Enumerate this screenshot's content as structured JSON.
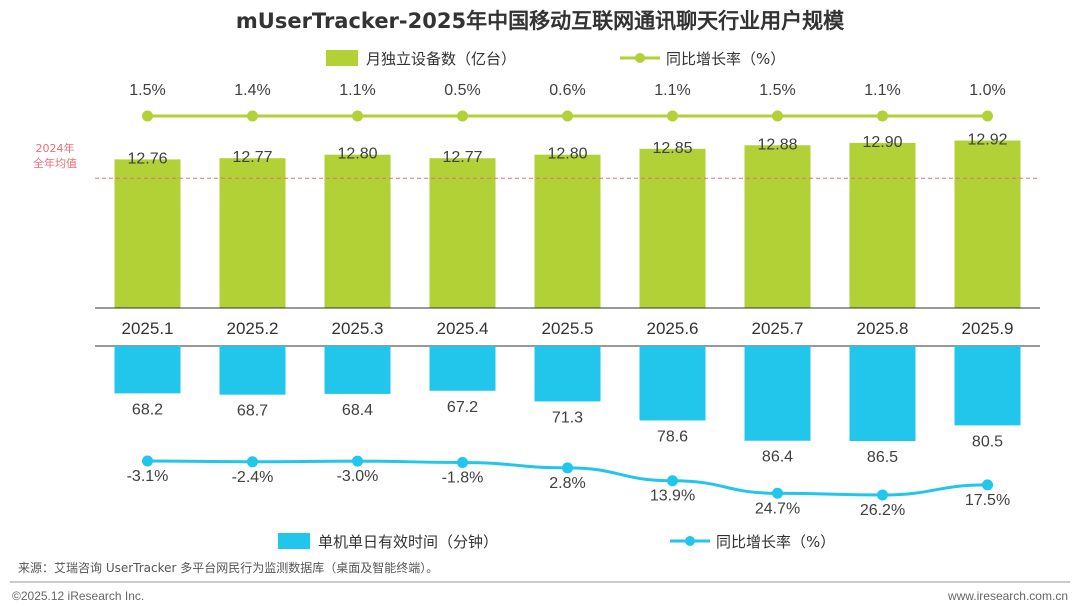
{
  "chart_data": {
    "type": "bar",
    "title": "mUserTracker-2025年中国移动互联网通讯聊天行业用户规模",
    "categories": [
      "2025.1",
      "2025.2",
      "2025.3",
      "2025.4",
      "2025.5",
      "2025.6",
      "2025.7",
      "2025.8",
      "2025.9"
    ],
    "top_panel": {
      "bar_series": {
        "name": "月独立设备数（亿台）",
        "values": [
          12.76,
          12.77,
          12.8,
          12.77,
          12.8,
          12.85,
          12.88,
          12.9,
          12.92
        ],
        "color": "#b1d136"
      },
      "line_series": {
        "name": "同比增长率（%）",
        "values": [
          1.5,
          1.4,
          1.1,
          0.5,
          0.6,
          1.1,
          1.5,
          1.1,
          1.0
        ],
        "labels": [
          "1.5%",
          "1.4%",
          "1.1%",
          "0.5%",
          "0.6%",
          "1.1%",
          "1.5%",
          "1.1%",
          "1.0%"
        ],
        "color": "#b1d136"
      },
      "reference_line": {
        "label_line1": "2024年",
        "label_line2": "全年均值",
        "value": 12.6,
        "color": "#e8707a"
      }
    },
    "bottom_panel": {
      "bar_series": {
        "name": "单机单日有效时间（分钟）",
        "values": [
          68.2,
          68.7,
          68.4,
          67.2,
          71.3,
          78.6,
          86.4,
          86.5,
          80.5
        ],
        "color": "#21c6ea"
      },
      "line_series": {
        "name": "同比增长率（%）",
        "values": [
          -3.1,
          -2.4,
          -3.0,
          -1.8,
          2.8,
          13.9,
          24.7,
          26.2,
          17.5
        ],
        "labels": [
          "-3.1%",
          "-2.4%",
          "-3.0%",
          "-1.8%",
          "2.8%",
          "13.9%",
          "24.7%",
          "26.2%",
          "17.5%"
        ],
        "color": "#21c6ea"
      }
    }
  },
  "source_text": "来源：艾瑞咨询 UserTracker 多平台网民行为监测数据库（桌面及智能终端）。",
  "footer_left": "©2025.12 iResearch Inc.",
  "footer_right": "www.iresearch.com.cn"
}
